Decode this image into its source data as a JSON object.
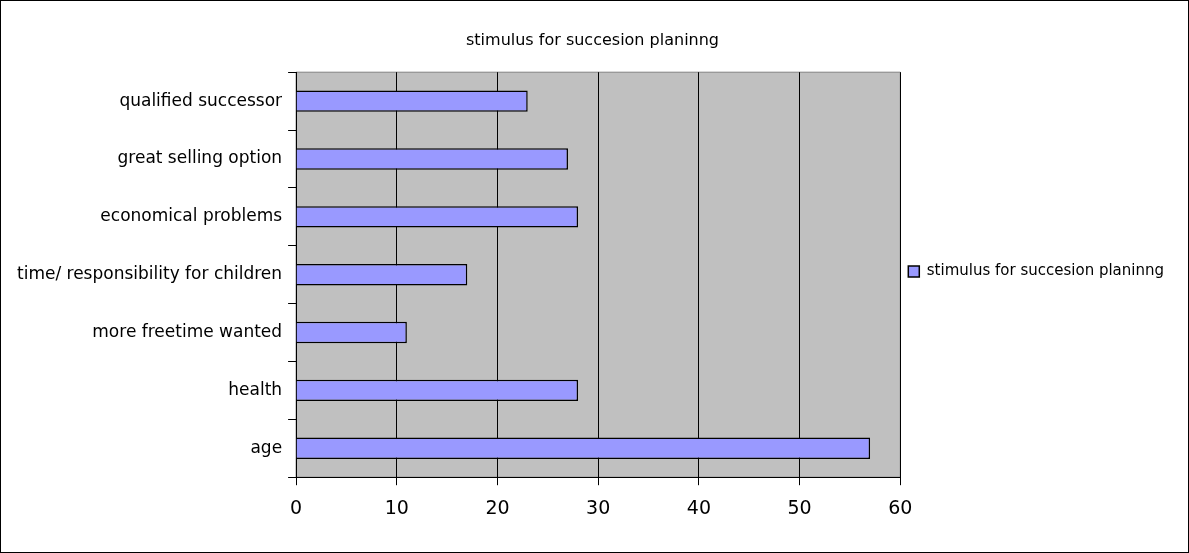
{
  "chart_data": {
    "type": "bar",
    "orientation": "horizontal",
    "title": "stimulus for succesion planinng",
    "categories": [
      "qualified successor",
      "great selling option",
      "economical problems",
      "time/ responsibility for children",
      "more freetime wanted",
      "health",
      "age"
    ],
    "series": [
      {
        "name": "stimulus for succesion planinng",
        "color": "#9999ff",
        "values": [
          23,
          27,
          28,
          17,
          11,
          28,
          57
        ]
      }
    ],
    "xlim": [
      0,
      60
    ],
    "xticks": [
      0,
      10,
      20,
      30,
      40,
      50,
      60
    ],
    "grid": "x",
    "legend": "right"
  }
}
